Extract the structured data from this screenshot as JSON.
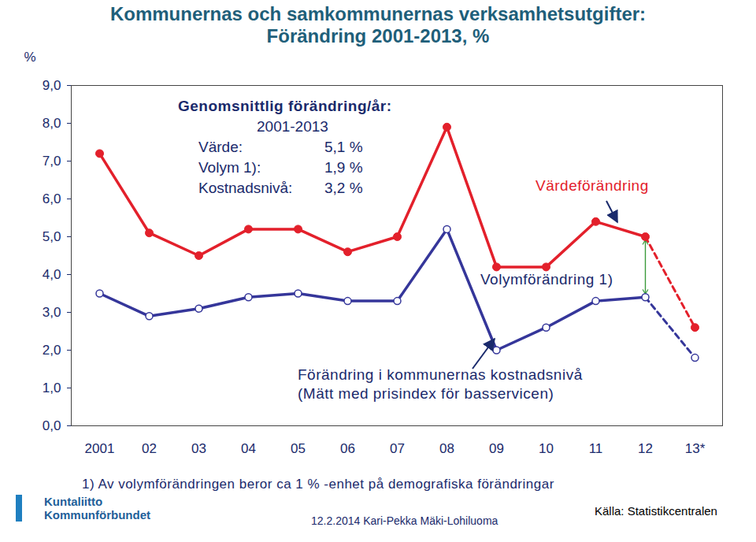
{
  "chart_data": {
    "type": "line",
    "title": [
      "Kommunernas och samkommunernas verksamhetsutgifter:",
      "Förändring 2001-2013, %"
    ],
    "categories": [
      "2001",
      "02",
      "03",
      "04",
      "05",
      "06",
      "07",
      "08",
      "09",
      "10",
      "11",
      "12",
      "13*"
    ],
    "series": [
      {
        "name": "Värdeförändring",
        "color": "#e3202b",
        "marker": "circle",
        "line_style": "solid",
        "values": [
          7.2,
          5.1,
          4.5,
          5.2,
          5.2,
          4.6,
          5.0,
          7.9,
          4.2,
          4.2,
          5.4,
          5.0,
          2.6
        ]
      },
      {
        "name": "Förändring i kommunernas kostnadsnivå",
        "color": "#35369a",
        "marker": "open_circle",
        "line_style": "solid",
        "values": [
          3.5,
          2.9,
          3.1,
          3.4,
          3.5,
          3.3,
          3.3,
          5.2,
          2.0,
          2.6,
          3.3,
          3.4,
          1.8
        ]
      }
    ],
    "y_label": "%",
    "ylim": [
      0,
      9
    ],
    "yticks": [
      {
        "value": 0,
        "label": "0,0"
      },
      {
        "value": 1,
        "label": "1,0"
      },
      {
        "value": 2,
        "label": "2,0"
      },
      {
        "value": 3,
        "label": "3,0"
      },
      {
        "value": 4,
        "label": "4,0"
      },
      {
        "value": 5,
        "label": "5,0"
      },
      {
        "value": 6,
        "label": "6,0"
      },
      {
        "value": 7,
        "label": "7,0"
      },
      {
        "value": 8,
        "label": "8,0"
      },
      {
        "value": 9,
        "label": "9,0"
      }
    ],
    "grid": false,
    "legend": false,
    "annotations": {
      "average_box": {
        "title": "Genomsnittlig förändring/år:",
        "period": "2001-2013",
        "rows": [
          [
            "Värde:",
            "5,1 %"
          ],
          [
            "Volym 1):",
            "1,9 %"
          ],
          [
            "Kostnadsnivå:",
            "3,2 %"
          ]
        ]
      },
      "volume": "Volymförändring 1)",
      "price_index": "(Mätt med prisindex för basservicen)",
      "footnote": "1) Av volymförändringen beror ca 1 % -enhet på demografiska förändringar",
      "logo": [
        "Kuntaliitto",
        "Kommunförbundet"
      ],
      "author": "12.2.2014 Kari-Pekka Mäki-Lohiluoma",
      "source": "Källa: Statistikcentralen"
    }
  }
}
